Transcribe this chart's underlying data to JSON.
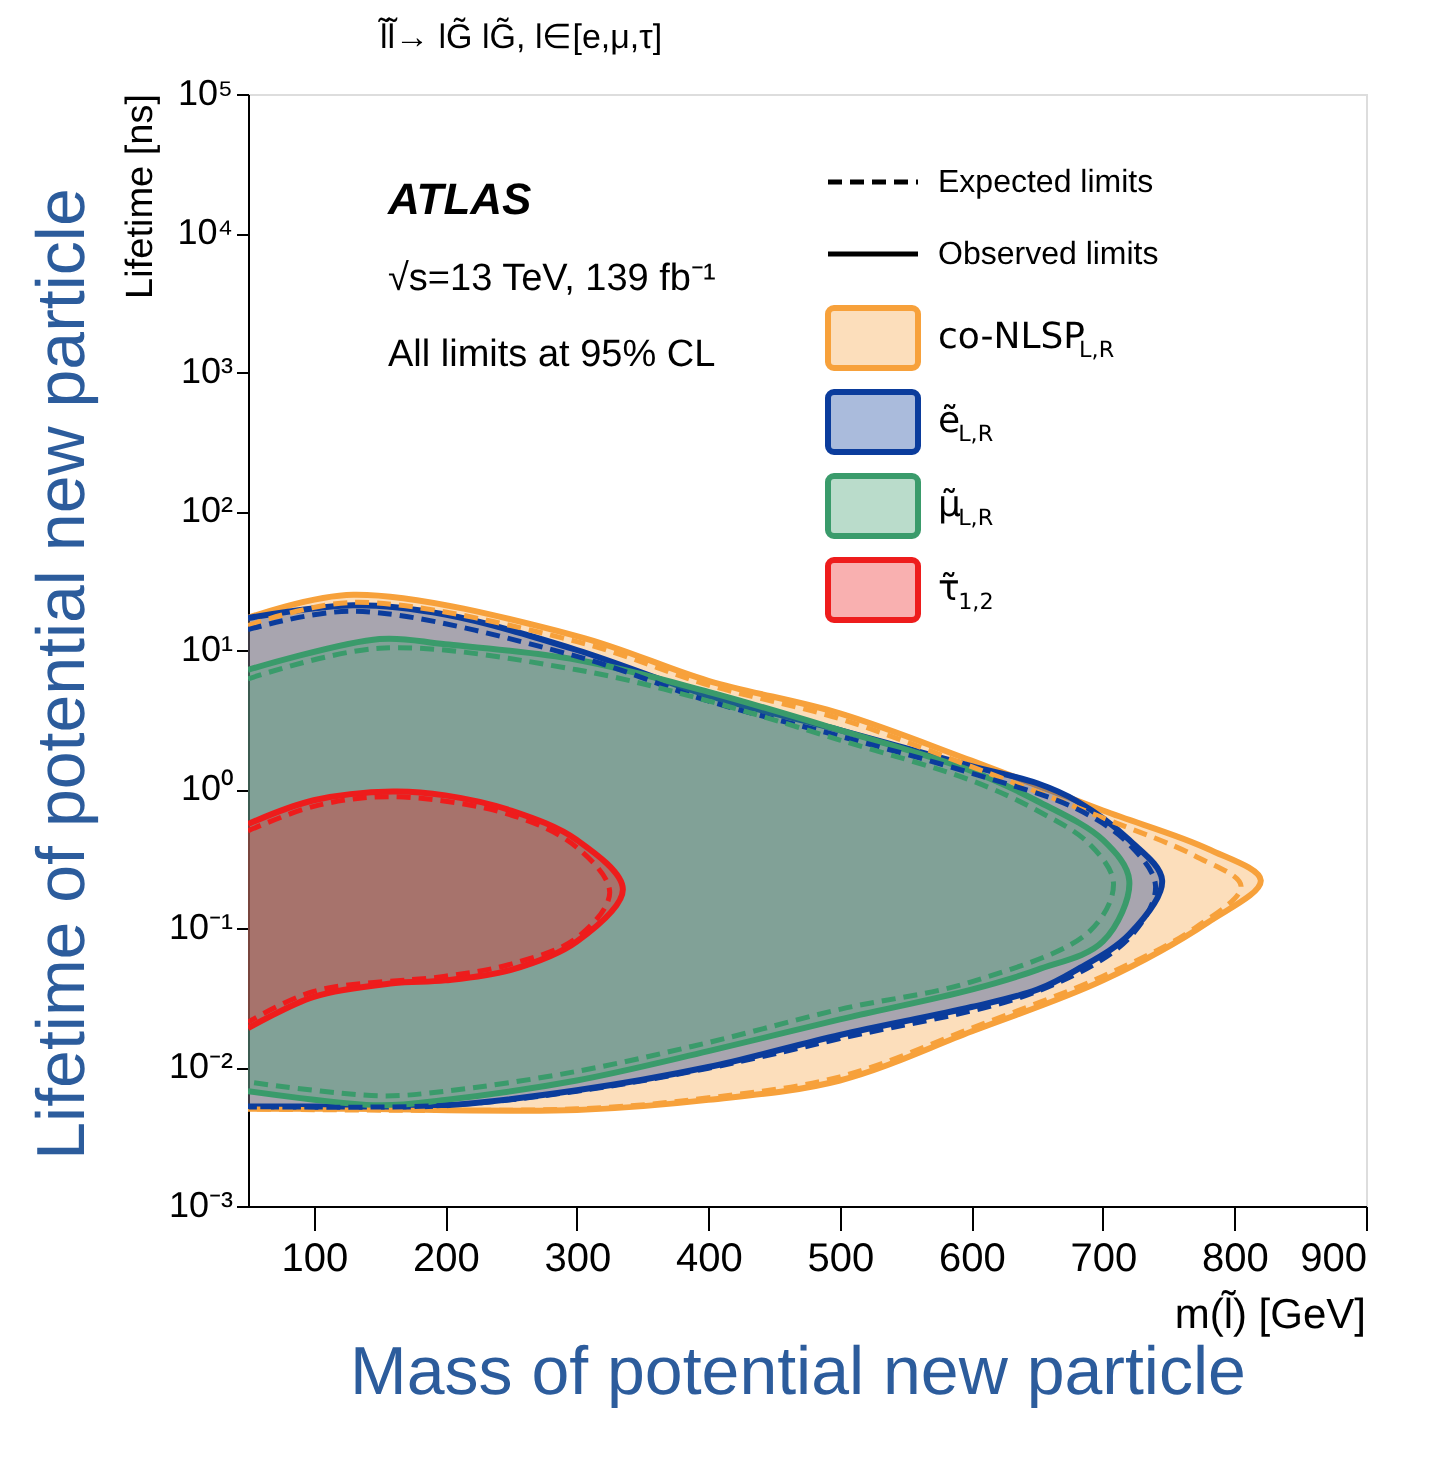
{
  "chart_data": {
    "type": "area",
    "title": "l̃l̃→ lG̃ lG̃, l∈[e,μ,τ]",
    "xlabel": "m(l̃) [GeV]",
    "ylabel": "Lifetime [ns]",
    "annotations": [
      "ATLAS",
      "√s=13 TeV, 139 fb⁻¹",
      "All limits at 95% CL",
      "Expected limits",
      "Observed limits",
      "Lifetime of potential new particle",
      "Mass of potential new particle"
    ],
    "xlim": [
      50,
      900
    ],
    "xticks": [
      100,
      200,
      300,
      400,
      500,
      600,
      700,
      800,
      900
    ],
    "ylim": [
      0.001,
      100000
    ],
    "log": true,
    "yticks": [
      {
        "value": 0.001,
        "label": "10⁻³"
      },
      {
        "value": 0.01,
        "label": "10⁻²"
      },
      {
        "value": 0.1,
        "label": "10⁻¹"
      },
      {
        "value": 1,
        "label": "10⁰"
      },
      {
        "value": 10,
        "label": "10¹"
      },
      {
        "value": 100,
        "label": "10²"
      },
      {
        "value": 1000,
        "label": "10³"
      },
      {
        "value": 10000,
        "label": "10⁴"
      },
      {
        "value": 100000,
        "label": "10⁵"
      }
    ],
    "grid": false,
    "legend": "top right",
    "series": [
      {
        "name": "co-NLSP$_{L,R}$",
        "color": "#f7a13b",
        "x": [
          50,
          130,
          300,
          400,
          500,
          600,
          700,
          780,
          820,
          780,
          700,
          600,
          500,
          400,
          300,
          130,
          50
        ],
        "values": [
          17,
          25,
          12.6,
          6,
          3.5,
          1.6,
          0.7,
          0.37,
          0.22,
          0.11,
          0.042,
          0.018,
          0.008,
          0.0058,
          0.0049,
          0.005,
          0.005
        ]
      },
      {
        "name": "ẽ$_{L,R}$",
        "color": "#0b3c9c",
        "x": [
          50,
          130,
          200,
          300,
          400,
          500,
          600,
          650,
          680,
          720,
          745,
          720,
          680,
          650,
          600,
          500,
          400,
          300,
          200,
          130,
          50
        ],
        "values": [
          17,
          21,
          18,
          10,
          4.7,
          2.65,
          1.46,
          1.1,
          0.82,
          0.43,
          0.22,
          0.09,
          0.05,
          0.036,
          0.027,
          0.017,
          0.01,
          0.0068,
          0.0053,
          0.0052,
          0.0052
        ]
      },
      {
        "name": "μ̃$_{L,R}$",
        "color": "#3a9b6b",
        "x": [
          50,
          150,
          200,
          300,
          400,
          500,
          600,
          650,
          700,
          720,
          700,
          650,
          600,
          500,
          400,
          300,
          200,
          150,
          50
        ],
        "values": [
          7.2,
          12,
          11,
          8.5,
          5,
          2.65,
          1.35,
          0.82,
          0.43,
          0.22,
          0.08,
          0.05,
          0.036,
          0.022,
          0.013,
          0.008,
          0.0058,
          0.0053,
          0.0067
        ]
      },
      {
        "name": "τ̃$_{1,2}$",
        "color": "#ee1c1c",
        "x": [
          50,
          100,
          160,
          200,
          250,
          300,
          335,
          300,
          250,
          200,
          160,
          100,
          50
        ],
        "values": [
          0.56,
          0.83,
          0.96,
          0.9,
          0.7,
          0.43,
          0.19,
          0.08,
          0.05,
          0.042,
          0.04,
          0.032,
          0.019
        ]
      },
      {
        "color": "#f7a13b",
        "type": "line",
        "line_style": "dashed",
        "x": [
          50,
          130,
          300,
          400,
          500,
          600,
          700,
          770,
          805,
          770,
          700,
          600,
          500,
          400,
          300,
          50
        ],
        "values": [
          15,
          22,
          11.5,
          5.6,
          3.2,
          1.45,
          0.62,
          0.33,
          0.2,
          0.1,
          0.045,
          0.019,
          0.0085,
          0.006,
          0.005,
          0.005
        ]
      },
      {
        "color": "#0b3c9c",
        "type": "line",
        "line_style": "dashed",
        "x": [
          50,
          130,
          300,
          400,
          500,
          600,
          680,
          720,
          740,
          720,
          650,
          500,
          400,
          300,
          200,
          50
        ],
        "values": [
          14,
          19,
          9,
          4.3,
          2.4,
          1.3,
          0.72,
          0.4,
          0.2,
          0.085,
          0.035,
          0.016,
          0.0098,
          0.0067,
          0.0053,
          0.0052
        ]
      },
      {
        "color": "#3a9b6b",
        "type": "line",
        "line_style": "dashed",
        "x": [
          50,
          150,
          300,
          400,
          500,
          600,
          650,
          690,
          708,
          690,
          600,
          500,
          400,
          300,
          200,
          150,
          50
        ],
        "values": [
          6.2,
          10.3,
          7.2,
          4.3,
          2.25,
          1.15,
          0.7,
          0.4,
          0.21,
          0.095,
          0.041,
          0.026,
          0.015,
          0.0093,
          0.0067,
          0.0062,
          0.0078
        ]
      },
      {
        "color": "#ee1c1c",
        "type": "line",
        "line_style": "dashed",
        "x": [
          50,
          100,
          160,
          250,
          300,
          325,
          300,
          250,
          200,
          100,
          50
        ],
        "values": [
          0.5,
          0.75,
          0.88,
          0.65,
          0.38,
          0.18,
          0.085,
          0.055,
          0.045,
          0.035,
          0.021
        ]
      }
    ]
  }
}
